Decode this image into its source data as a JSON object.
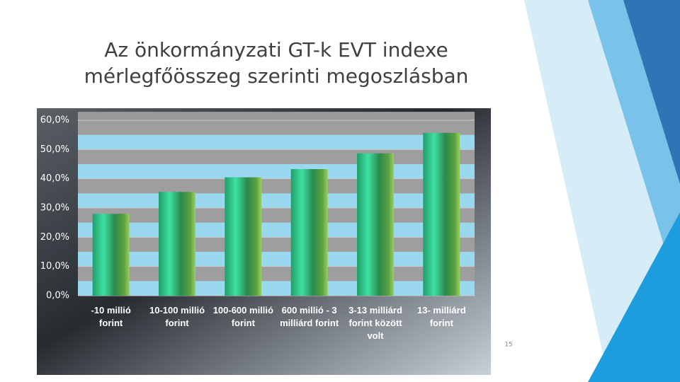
{
  "chart_data": {
    "type": "bar",
    "title": "Az önkormányzati GT-k EVT indexe\nmérlegfőösszeg szerinti megoszlásban",
    "categories": [
      "-10 millió forint",
      "10-100 millió forint",
      "100-600 millió forint",
      "600 millió - 3 milliárd forint",
      "3-13 milliárd forint között volt",
      "13- milliárd forint"
    ],
    "values": [
      28,
      35.5,
      40.5,
      43.3,
      48.7,
      55.7
    ],
    "ylim": [
      0,
      60
    ],
    "yticks": [
      {
        "value": 0,
        "label": "0,0%"
      },
      {
        "value": 10,
        "label": "10,0%"
      },
      {
        "value": 20,
        "label": "20,0%"
      },
      {
        "value": 30,
        "label": "30,0%"
      },
      {
        "value": 40,
        "label": "40,0%"
      },
      {
        "value": 50,
        "label": "50,0%"
      },
      {
        "value": 60,
        "label": "60,0%"
      }
    ],
    "grid": true
  },
  "page_number": "15"
}
